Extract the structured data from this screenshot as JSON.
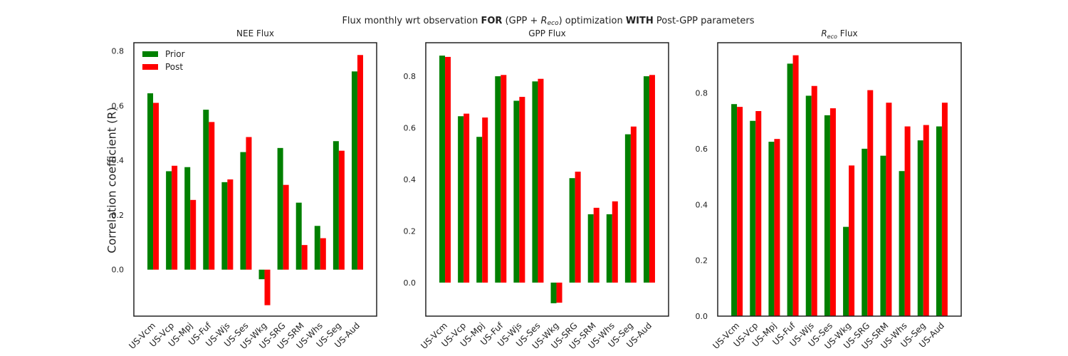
{
  "figure": {
    "title_parts": [
      "Flux monthly wrt observation ",
      "FOR",
      " (GPP + ",
      "R",
      "eco",
      ") optimization ",
      "WITH",
      " Post-GPP parameters"
    ],
    "ylabel": "Correlation coefficient (R)"
  },
  "legend": {
    "placement": "upper-left",
    "entries": [
      "Prior",
      "Post"
    ]
  },
  "colors": {
    "prior": "#008000",
    "post": "#ff0000",
    "frame": "#222222"
  },
  "chart_data": [
    {
      "type": "bar",
      "title": "NEE Flux",
      "categories": [
        "US-Vcm",
        "US-Vcp",
        "US-Mpj",
        "US-Fuf",
        "US-Wjs",
        "US-Ses",
        "US-Wkg",
        "US-SRG",
        "US-SRM",
        "US-Whs",
        "US-Seg",
        "US-Aud"
      ],
      "series": [
        {
          "name": "Prior",
          "values": [
            0.645,
            0.36,
            0.375,
            0.585,
            0.32,
            0.43,
            -0.035,
            0.445,
            0.245,
            0.16,
            0.47,
            0.725
          ]
        },
        {
          "name": "Post",
          "values": [
            0.61,
            0.38,
            0.255,
            0.54,
            0.33,
            0.485,
            -0.13,
            0.31,
            0.09,
            0.115,
            0.435,
            0.785
          ]
        }
      ],
      "ylim": [
        -0.17,
        0.83
      ],
      "yticks": [
        "0.0",
        "0.2",
        "0.4",
        "0.6",
        "0.8"
      ],
      "grid": false
    },
    {
      "type": "bar",
      "title": "GPP Flux",
      "categories": [
        "US-Vcm",
        "US-Vcp",
        "US-Mpj",
        "US-Fuf",
        "US-Wjs",
        "US-Ses",
        "US-Wkg",
        "US-SRG",
        "US-SRM",
        "US-Whs",
        "US-Seg",
        "US-Aud"
      ],
      "series": [
        {
          "name": "Prior",
          "values": [
            0.88,
            0.645,
            0.565,
            0.8,
            0.705,
            0.78,
            -0.08,
            0.405,
            0.265,
            0.265,
            0.575,
            0.8
          ]
        },
        {
          "name": "Post",
          "values": [
            0.875,
            0.655,
            0.64,
            0.805,
            0.72,
            0.79,
            -0.078,
            0.43,
            0.29,
            0.315,
            0.605,
            0.805
          ]
        }
      ],
      "ylim": [
        -0.13,
        0.93
      ],
      "yticks": [
        "0.0",
        "0.2",
        "0.4",
        "0.6",
        "0.8"
      ],
      "grid": false
    },
    {
      "type": "bar",
      "title_parts": [
        "R",
        "eco",
        " Flux"
      ],
      "categories": [
        "US-Vcm",
        "US-Vcp",
        "US-Mpj",
        "US-Fuf",
        "US-Wjs",
        "US-Ses",
        "US-Wkg",
        "US-SRG",
        "US-SRM",
        "US-Whs",
        "US-Seg",
        "US-Aud"
      ],
      "series": [
        {
          "name": "Prior",
          "values": [
            0.76,
            0.7,
            0.625,
            0.905,
            0.79,
            0.72,
            0.32,
            0.6,
            0.575,
            0.52,
            0.63,
            0.68
          ]
        },
        {
          "name": "Post",
          "values": [
            0.75,
            0.735,
            0.635,
            0.935,
            0.825,
            0.745,
            0.54,
            0.81,
            0.765,
            0.68,
            0.685,
            0.765
          ]
        }
      ],
      "ylim": [
        0.0,
        0.98
      ],
      "yticks": [
        "0.0",
        "0.2",
        "0.4",
        "0.6",
        "0.8"
      ],
      "grid": false
    }
  ]
}
